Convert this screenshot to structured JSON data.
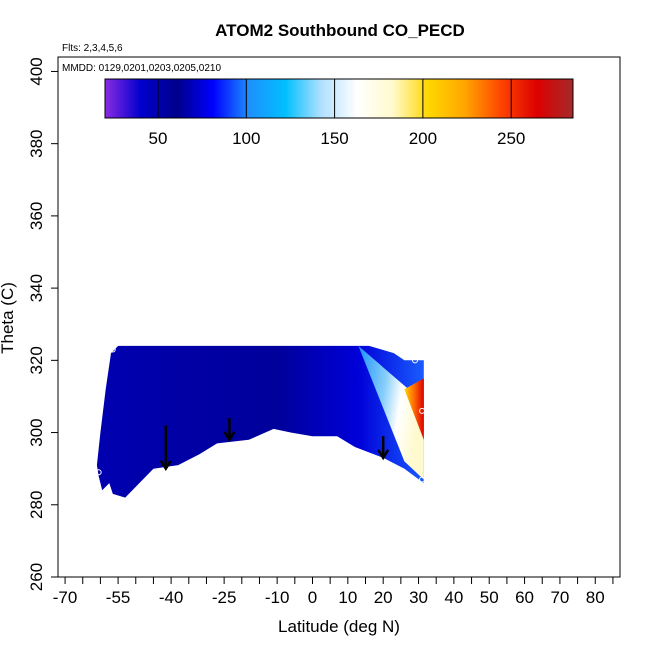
{
  "chart_data": {
    "type": "heatmap",
    "title": "ATOM2 Southbound CO_PECD",
    "notes": {
      "flights": "Flts: 2,3,4,5,6",
      "dates": "MMDD: 0129,0201,0203,0205,0210"
    },
    "xlabel": "Latitude (deg N)",
    "ylabel": "Theta (C)",
    "xlim": [
      -72,
      87
    ],
    "ylim": [
      260,
      404
    ],
    "x_tick_labels": [
      "-70",
      "-55",
      "-40",
      "-25",
      "-10",
      "0",
      "10",
      "20",
      "30",
      "40",
      "50",
      "60",
      "70",
      "80"
    ],
    "x_tick_values": [
      -70,
      -55,
      -40,
      -25,
      -10,
      0,
      10,
      20,
      30,
      40,
      50,
      60,
      70,
      80
    ],
    "x_minor_ticks": [
      -65,
      -60,
      -50,
      -45,
      -35,
      -30,
      -20,
      -15,
      -5,
      5,
      15,
      25,
      35,
      45,
      55,
      65,
      75,
      85
    ],
    "y_ticks": [
      260,
      280,
      300,
      320,
      340,
      360,
      380,
      400
    ],
    "colorbar": {
      "range": [
        20,
        285
      ],
      "ticks": [
        50,
        100,
        150,
        200,
        250
      ],
      "colors": [
        "#8a2be2",
        "#0000cd",
        "#00008b",
        "#0000ff",
        "#1e90ff",
        "#00bfff",
        "#b0e0ff",
        "#ffffff",
        "#fffacd",
        "#ffd700",
        "#ffa500",
        "#ff4500",
        "#dd0000",
        "#a52a2a"
      ]
    },
    "field": {
      "outline": [
        [
          -60.5,
          288
        ],
        [
          -59.5,
          284
        ],
        [
          -57.5,
          286
        ],
        [
          -56.5,
          283
        ],
        [
          -53,
          282
        ],
        [
          -45,
          290
        ],
        [
          -38,
          291
        ],
        [
          -32,
          294
        ],
        [
          -27,
          297
        ],
        [
          -18,
          298
        ],
        [
          -11,
          301
        ],
        [
          -6,
          300
        ],
        [
          0,
          299
        ],
        [
          7,
          299
        ],
        [
          12,
          296
        ],
        [
          20,
          293
        ],
        [
          26,
          290
        ],
        [
          31.5,
          286
        ],
        [
          31.5,
          320
        ],
        [
          26,
          320
        ],
        [
          23,
          322
        ],
        [
          16,
          324
        ],
        [
          -55,
          324
        ],
        [
          -57,
          322
        ],
        [
          -58.5,
          312
        ],
        [
          -60,
          300
        ],
        [
          -61,
          291
        ]
      ],
      "wedge": [
        [
          13,
          324
        ],
        [
          29.5,
          310
        ],
        [
          31.5,
          300
        ],
        [
          31.5,
          287
        ],
        [
          26,
          292
        ]
      ],
      "core": [
        [
          26,
          312
        ],
        [
          31.5,
          315
        ],
        [
          31.5,
          298
        ]
      ],
      "diagonal_tip": [
        13,
        324
      ],
      "top_right_block": [
        16,
        324,
        25,
        320
      ]
    },
    "descent_arrows": [
      {
        "x": -41.5,
        "y_from": 302,
        "y_to": 290
      },
      {
        "x": -23.5,
        "y_from": 304,
        "y_to": 298
      },
      {
        "x": 20,
        "y_from": 299,
        "y_to": 293
      }
    ],
    "minor_markers": [
      [
        -55,
        281
      ],
      [
        5,
        326
      ],
      [
        -56.5,
        323
      ],
      [
        -60.5,
        289
      ],
      [
        31,
        306
      ],
      [
        29,
        320
      ],
      [
        31,
        287
      ]
    ]
  }
}
